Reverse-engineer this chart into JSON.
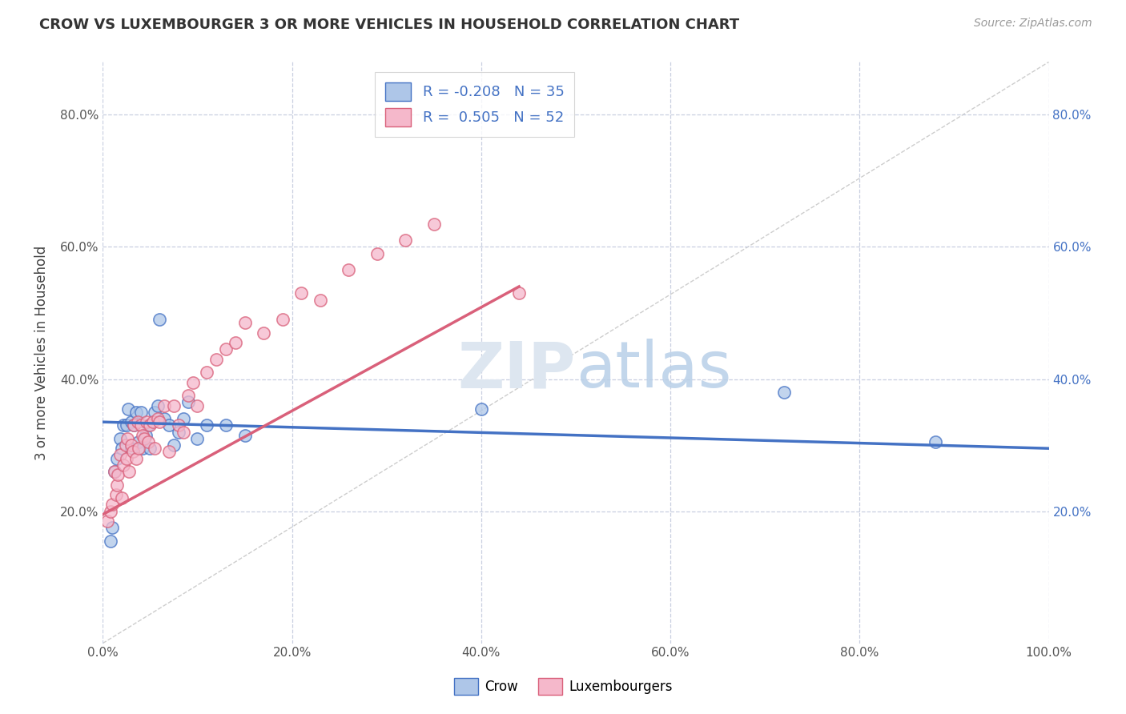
{
  "title": "CROW VS LUXEMBOURGER 3 OR MORE VEHICLES IN HOUSEHOLD CORRELATION CHART",
  "source": "Source: ZipAtlas.com",
  "ylabel": "3 or more Vehicles in Household",
  "xlim": [
    0.0,
    1.0
  ],
  "ylim": [
    0.0,
    0.88
  ],
  "x_tick_labels": [
    "0.0%",
    "20.0%",
    "40.0%",
    "60.0%",
    "80.0%",
    "100.0%"
  ],
  "x_tick_vals": [
    0.0,
    0.2,
    0.4,
    0.6,
    0.8,
    1.0
  ],
  "y_tick_labels": [
    "20.0%",
    "40.0%",
    "60.0%",
    "80.0%"
  ],
  "y_tick_vals": [
    0.2,
    0.4,
    0.6,
    0.8
  ],
  "crow_R": -0.208,
  "crow_N": 35,
  "lux_R": 0.505,
  "lux_N": 52,
  "crow_color": "#aec6e8",
  "crow_edge_color": "#4472c4",
  "crow_line_color": "#4472c4",
  "lux_color": "#f5b8cb",
  "lux_edge_color": "#d9607a",
  "lux_line_color": "#d9607a",
  "ref_line_color": "#c8c8c8",
  "background_color": "#ffffff",
  "watermark_color": "#dde6f0",
  "grid_color": "#c8cfe0",
  "crow_scatter_x": [
    0.008,
    0.01,
    0.012,
    0.015,
    0.018,
    0.02,
    0.022,
    0.025,
    0.027,
    0.03,
    0.03,
    0.033,
    0.035,
    0.038,
    0.04,
    0.042,
    0.045,
    0.048,
    0.05,
    0.055,
    0.058,
    0.06,
    0.065,
    0.07,
    0.075,
    0.08,
    0.085,
    0.09,
    0.1,
    0.11,
    0.13,
    0.15,
    0.4,
    0.72,
    0.88
  ],
  "crow_scatter_y": [
    0.155,
    0.175,
    0.26,
    0.28,
    0.31,
    0.295,
    0.33,
    0.33,
    0.355,
    0.295,
    0.335,
    0.33,
    0.35,
    0.305,
    0.35,
    0.295,
    0.315,
    0.33,
    0.295,
    0.35,
    0.36,
    0.49,
    0.34,
    0.33,
    0.3,
    0.32,
    0.34,
    0.365,
    0.31,
    0.33,
    0.33,
    0.315,
    0.355,
    0.38,
    0.305
  ],
  "lux_scatter_x": [
    0.005,
    0.008,
    0.01,
    0.012,
    0.014,
    0.015,
    0.016,
    0.018,
    0.02,
    0.022,
    0.024,
    0.025,
    0.026,
    0.028,
    0.03,
    0.032,
    0.033,
    0.035,
    0.037,
    0.038,
    0.04,
    0.042,
    0.044,
    0.046,
    0.048,
    0.05,
    0.053,
    0.055,
    0.058,
    0.06,
    0.065,
    0.07,
    0.075,
    0.08,
    0.085,
    0.09,
    0.095,
    0.1,
    0.11,
    0.12,
    0.13,
    0.14,
    0.15,
    0.17,
    0.19,
    0.21,
    0.23,
    0.26,
    0.29,
    0.32,
    0.35,
    0.44
  ],
  "lux_scatter_y": [
    0.185,
    0.2,
    0.21,
    0.26,
    0.225,
    0.24,
    0.255,
    0.285,
    0.22,
    0.27,
    0.3,
    0.28,
    0.31,
    0.26,
    0.3,
    0.29,
    0.33,
    0.28,
    0.335,
    0.295,
    0.33,
    0.315,
    0.31,
    0.335,
    0.305,
    0.33,
    0.335,
    0.295,
    0.34,
    0.335,
    0.36,
    0.29,
    0.36,
    0.33,
    0.32,
    0.375,
    0.395,
    0.36,
    0.41,
    0.43,
    0.445,
    0.455,
    0.485,
    0.47,
    0.49,
    0.53,
    0.52,
    0.565,
    0.59,
    0.61,
    0.635,
    0.53
  ],
  "crow_trend_x": [
    0.0,
    1.0
  ],
  "crow_trend_y": [
    0.335,
    0.295
  ],
  "lux_trend_x": [
    0.0,
    0.44
  ],
  "lux_trend_y": [
    0.195,
    0.54
  ]
}
